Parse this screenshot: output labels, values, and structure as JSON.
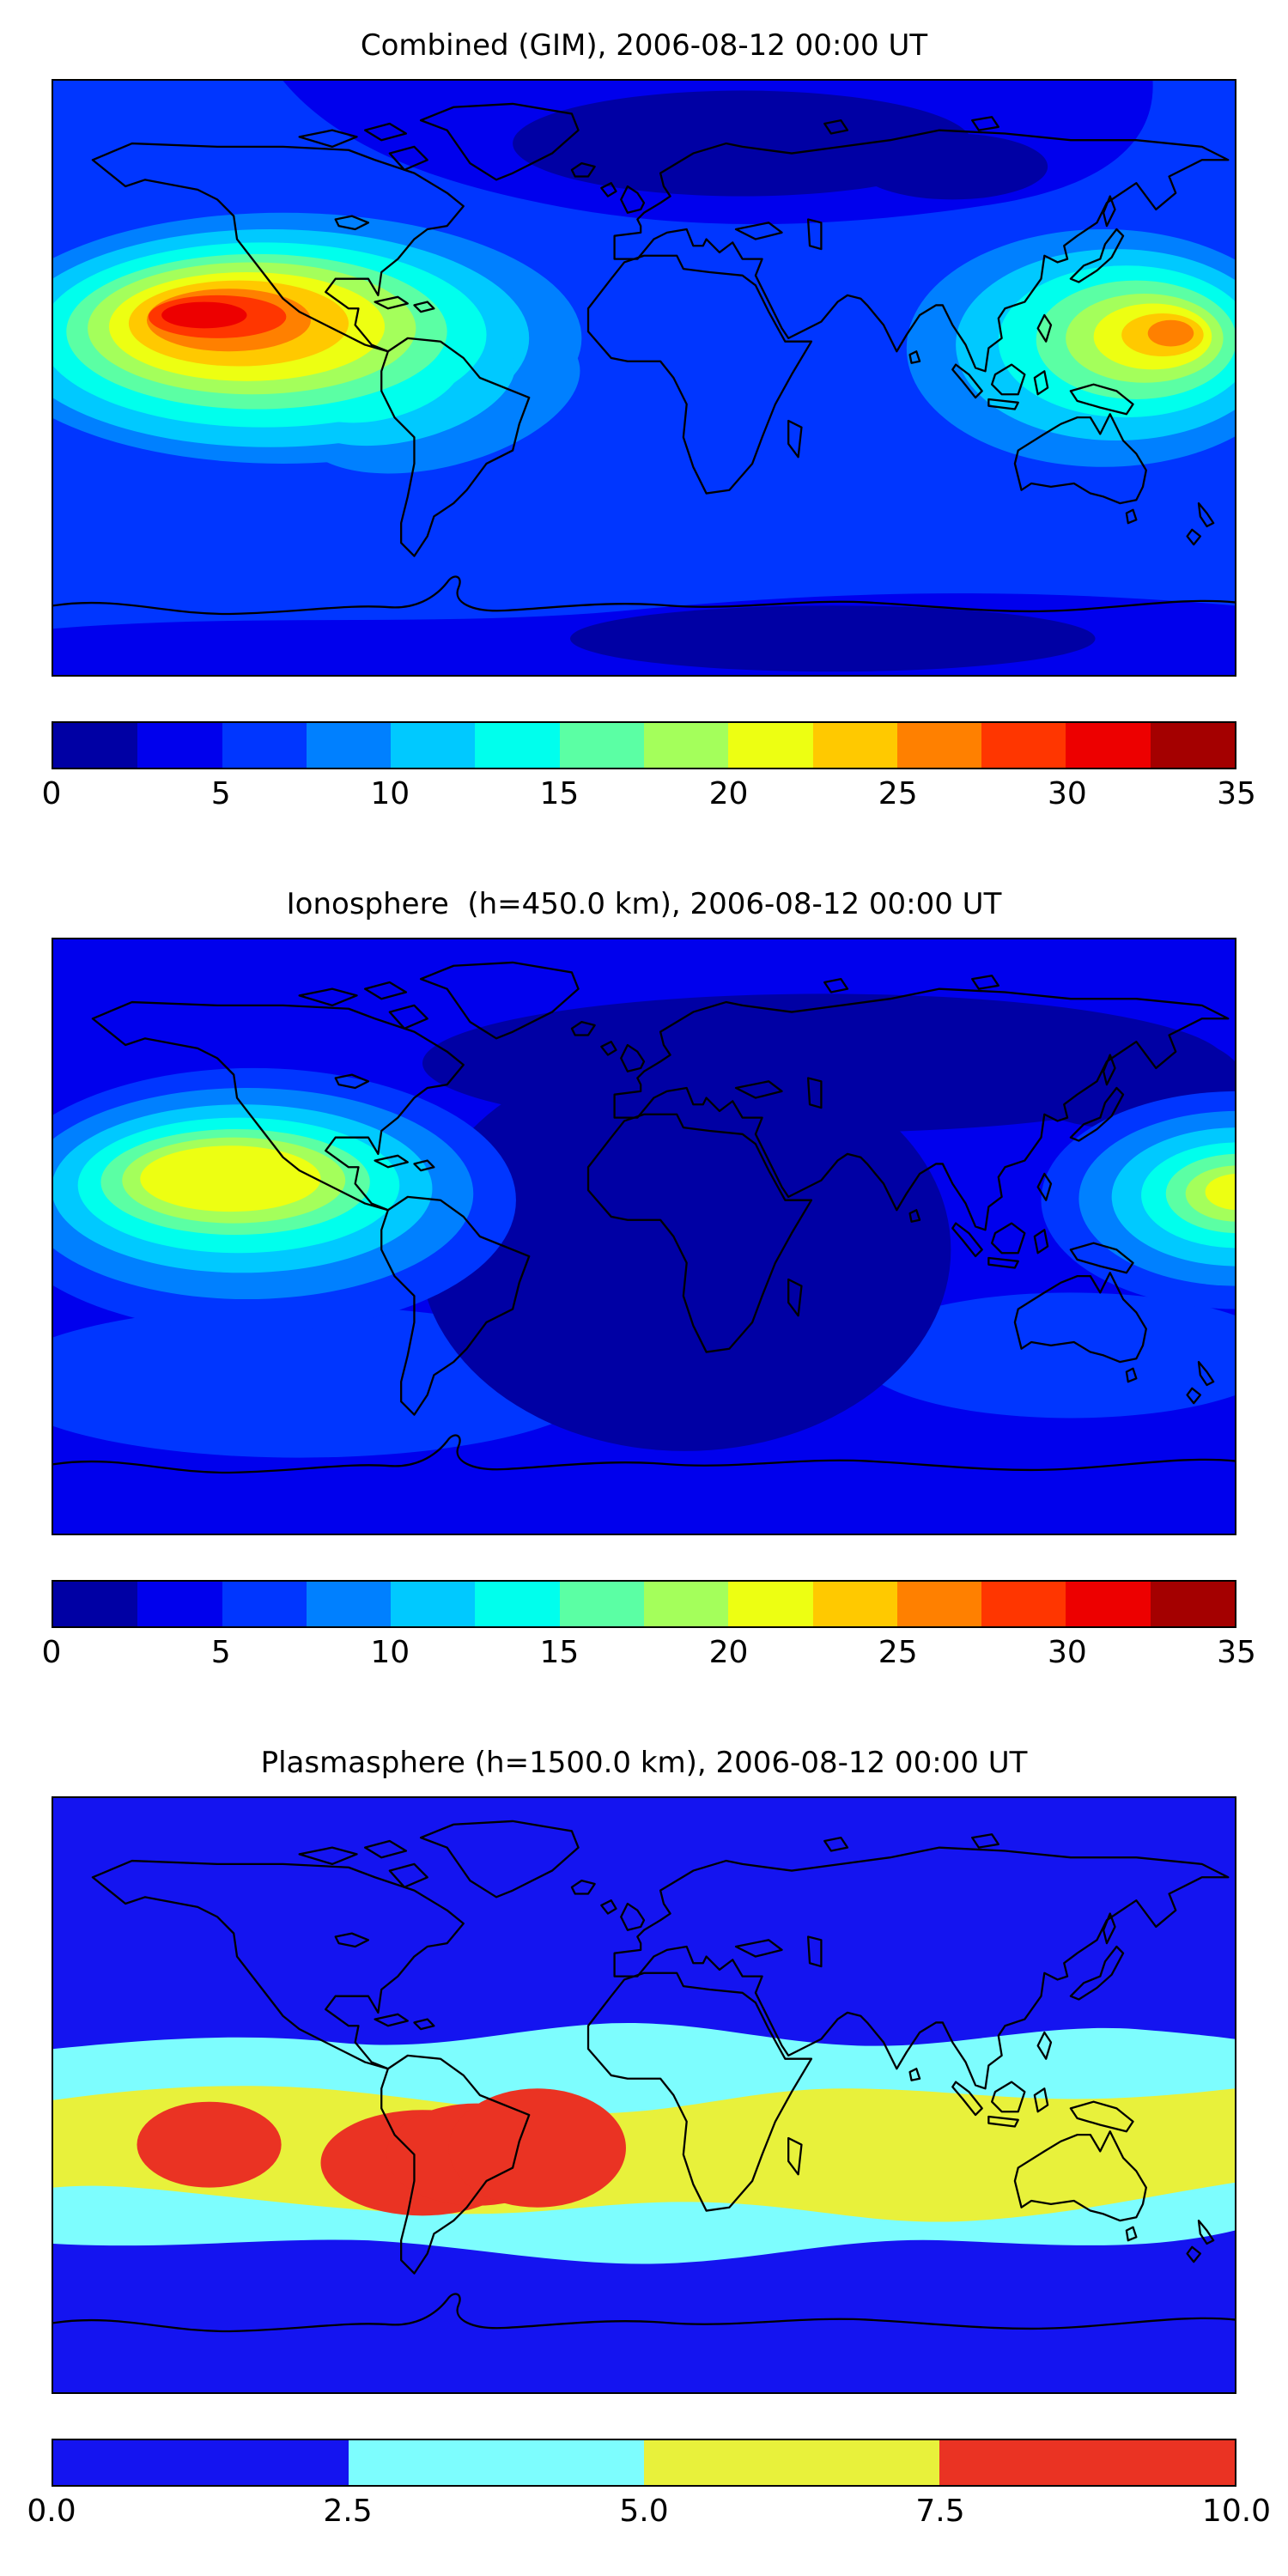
{
  "figure": {
    "background": "#ffffff",
    "panels": [
      {
        "id": "combined-gim",
        "title": "Combined (GIM), 2006-08-12 00:00 UT",
        "colorbar": {
          "vmin": 0,
          "vmax": 35,
          "tick_values": [
            0,
            5,
            10,
            15,
            20,
            25,
            30,
            35
          ],
          "tick_labels": [
            "0",
            "5",
            "10",
            "15",
            "20",
            "25",
            "30",
            "35"
          ],
          "colors": [
            "#0000a4",
            "#0000ed",
            "#0036ff",
            "#0080ff",
            "#00c9ff",
            "#00ffed",
            "#5bffa4",
            "#a4ff5b",
            "#edff12",
            "#ffc900",
            "#ff8000",
            "#ff3600",
            "#ed0000",
            "#a40000"
          ]
        }
      },
      {
        "id": "ionosphere",
        "title": "Ionosphere  (h=450.0 km), 2006-08-12 00:00 UT",
        "colorbar": {
          "vmin": 0,
          "vmax": 35,
          "tick_values": [
            0,
            5,
            10,
            15,
            20,
            25,
            30,
            35
          ],
          "tick_labels": [
            "0",
            "5",
            "10",
            "15",
            "20",
            "25",
            "30",
            "35"
          ],
          "colors": [
            "#0000a4",
            "#0000ed",
            "#0036ff",
            "#0080ff",
            "#00c9ff",
            "#00ffed",
            "#5bffa4",
            "#a4ff5b",
            "#edff12",
            "#ffc900",
            "#ff8000",
            "#ff3600",
            "#ed0000",
            "#a40000"
          ]
        }
      },
      {
        "id": "plasmasphere",
        "title": "Plasmasphere (h=1500.0 km), 2006-08-12 00:00 UT",
        "colorbar": {
          "vmin": 0,
          "vmax": 10,
          "tick_values": [
            0,
            2.5,
            5,
            7.5,
            10
          ],
          "tick_labels": [
            "0.0",
            "2.5",
            "5.0",
            "7.5",
            "10.0"
          ],
          "colors": [
            "#1414f0",
            "#7dfdfe",
            "#e8f13b",
            "#ea3323"
          ]
        }
      }
    ]
  },
  "chart_data": [
    {
      "type": "heatmap",
      "subtype": "filled_contour_world_map",
      "title": "Combined (GIM), 2006-08-12 00:00 UT",
      "projection": "equirectangular",
      "lon_range": [
        -180,
        180
      ],
      "lat_range": [
        -90,
        90
      ],
      "colormap": "jet, 14 discrete bins",
      "value_range": [
        0,
        35
      ],
      "contour_interval": 2.5,
      "colorbar_ticks": [
        0,
        5,
        10,
        15,
        20,
        25,
        30,
        35
      ],
      "grid": false,
      "features": [
        {
          "name": "primary TEC maximum",
          "lon": -130,
          "lat": 16,
          "approx_value": "30-35"
        },
        {
          "name": "secondary TEC maximum near Japan/Philippines",
          "lon": 155,
          "lat": 13,
          "approx_value": "25-30"
        },
        {
          "name": "equatorial enhancement band",
          "lat_band": [
            -10,
            30
          ],
          "approx_value": "10-25"
        },
        {
          "name": "northern high-latitude minimum (Eurasia/Arctic)",
          "lon": 50,
          "lat": 68,
          "approx_value": "0-2.5"
        },
        {
          "name": "southern Indian Ocean / Antarctic minimum",
          "lon": 60,
          "lat": -75,
          "approx_value": "0-2.5"
        },
        {
          "name": "background oceans",
          "approx_value": "2.5-7.5"
        }
      ]
    },
    {
      "type": "heatmap",
      "subtype": "filled_contour_world_map",
      "title": "Ionosphere  (h=450.0 km), 2006-08-12 00:00 UT",
      "projection": "equirectangular",
      "lon_range": [
        -180,
        180
      ],
      "lat_range": [
        -90,
        90
      ],
      "colormap": "jet, 14 discrete bins",
      "value_range": [
        0,
        35
      ],
      "contour_interval": 2.5,
      "colorbar_ticks": [
        0,
        5,
        10,
        15,
        20,
        25,
        30,
        35
      ],
      "grid": false,
      "features": [
        {
          "name": "primary maximum, eastern Pacific",
          "lon": -126,
          "lat": 17,
          "approx_value": "20-22.5"
        },
        {
          "name": "secondary maximum at dateline (cut by right edge)",
          "lon": 178,
          "lat": 11,
          "approx_value": "20-22.5"
        },
        {
          "name": "broad minimum over Europe/Africa/Atlantic",
          "lon": 10,
          "lat": 0,
          "approx_value": "0-2.5"
        },
        {
          "name": "background oceans",
          "approx_value": "2.5-5"
        }
      ]
    },
    {
      "type": "heatmap",
      "subtype": "filled_contour_world_map",
      "title": "Plasmasphere (h=1500.0 km), 2006-08-12 00:00 UT",
      "projection": "equirectangular",
      "lon_range": [
        -180,
        180
      ],
      "lat_range": [
        -90,
        90
      ],
      "colormap": "4 discrete bins (blue, cyan, yellow, red)",
      "value_range": [
        0,
        10
      ],
      "contour_interval": 2.5,
      "colorbar_ticks": [
        0,
        2.5,
        5,
        7.5,
        10
      ],
      "grid": false,
      "features": [
        {
          "name": "maximum over South America / South Atlantic",
          "lon": -66,
          "lat": -20,
          "approx_value": "7.5-10"
        },
        {
          "name": "secondary maximum, eastern Pacific",
          "lon": -132,
          "lat": -15,
          "approx_value": "7.5-10"
        },
        {
          "name": "equatorial plasmaspheric band",
          "lat_band": [
            -35,
            18
          ],
          "approx_value": "5-7.5"
        },
        {
          "name": "transition band around equatorial belt",
          "approx_value": "2.5-5"
        },
        {
          "name": "high latitudes north and south",
          "approx_value": "0-2.5"
        }
      ]
    }
  ]
}
